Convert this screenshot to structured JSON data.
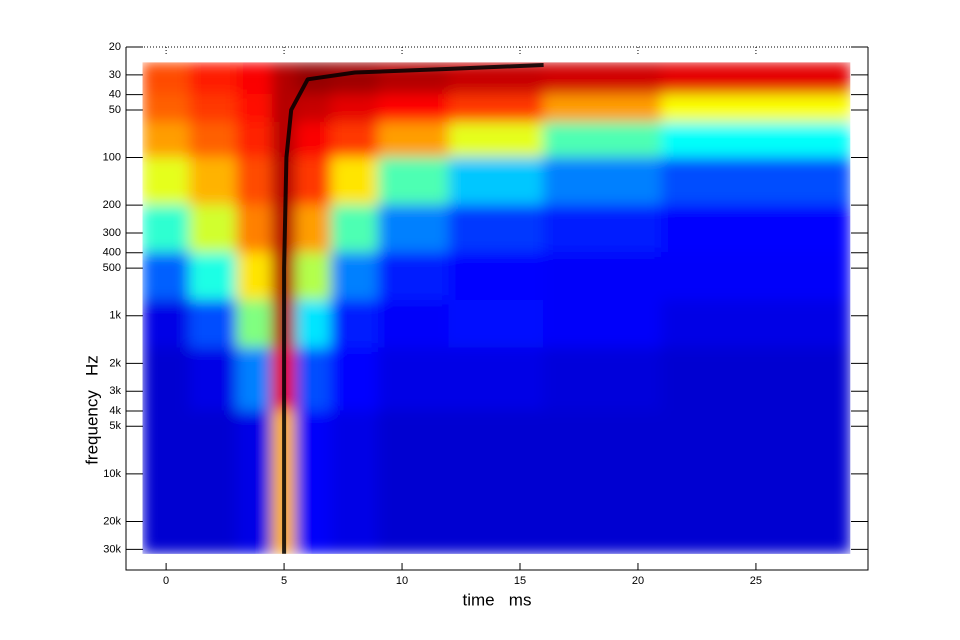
{
  "chart_data": {
    "type": "heatmap",
    "xlabel": "time   ms",
    "ylabel": "frequency   Hz",
    "xlim": [
      -1.7,
      29.75
    ],
    "xticks": [
      0,
      5,
      10,
      15,
      20,
      25
    ],
    "ylim": [
      40500,
      20
    ],
    "yscale": "log",
    "yticks": [
      20,
      30,
      40,
      50,
      100,
      200,
      300,
      400,
      500,
      {
        "value": 1000,
        "label": "1k"
      },
      {
        "value": 2000,
        "label": "2k"
      },
      {
        "value": 3000,
        "label": "3k"
      },
      {
        "value": 4000,
        "label": "4k"
      },
      {
        "value": 5000,
        "label": "5k"
      },
      {
        "value": 10000,
        "label": "10k"
      },
      {
        "value": 20000,
        "label": "20k"
      },
      {
        "value": 30000,
        "label": "30k"
      }
    ],
    "colormap": "jet",
    "clim": [
      0,
      1
    ],
    "x_edges": [
      -1,
      1,
      3,
      4.5,
      5.5,
      7,
      9,
      12,
      16,
      21,
      29
    ],
    "y_edges": [
      25,
      40,
      60,
      100,
      200,
      400,
      800,
      1600,
      4000,
      32000
    ],
    "z": [
      [
        0.8,
        0.85,
        0.88,
        0.95,
        0.98,
        0.97,
        0.95,
        0.93,
        0.92,
        0.9
      ],
      [
        0.78,
        0.82,
        0.86,
        0.95,
        0.93,
        0.9,
        0.87,
        0.82,
        0.72,
        0.62
      ],
      [
        0.72,
        0.78,
        0.84,
        0.95,
        0.88,
        0.82,
        0.72,
        0.6,
        0.45,
        0.38
      ],
      [
        0.6,
        0.7,
        0.8,
        0.95,
        0.82,
        0.65,
        0.45,
        0.32,
        0.25,
        0.2
      ],
      [
        0.42,
        0.58,
        0.75,
        0.95,
        0.72,
        0.45,
        0.25,
        0.18,
        0.15,
        0.13
      ],
      [
        0.22,
        0.4,
        0.65,
        0.95,
        0.55,
        0.25,
        0.15,
        0.13,
        0.12,
        0.12
      ],
      [
        0.1,
        0.2,
        0.5,
        0.95,
        0.35,
        0.15,
        0.12,
        0.14,
        0.12,
        0.1
      ],
      [
        0.08,
        0.1,
        0.25,
        0.9,
        0.2,
        0.13,
        0.1,
        0.1,
        0.09,
        0.08
      ],
      [
        0.08,
        0.08,
        0.1,
        0.7,
        0.12,
        0.1,
        0.08,
        0.08,
        0.08,
        0.08
      ]
    ],
    "series": [
      {
        "color": "#000000",
        "x": [
          5,
          5,
          5,
          5.1,
          5.3,
          6,
          8,
          12,
          16
        ],
        "values": [
          32000,
          5000,
          500,
          100,
          50,
          32,
          29,
          27.5,
          26
        ]
      }
    ]
  }
}
